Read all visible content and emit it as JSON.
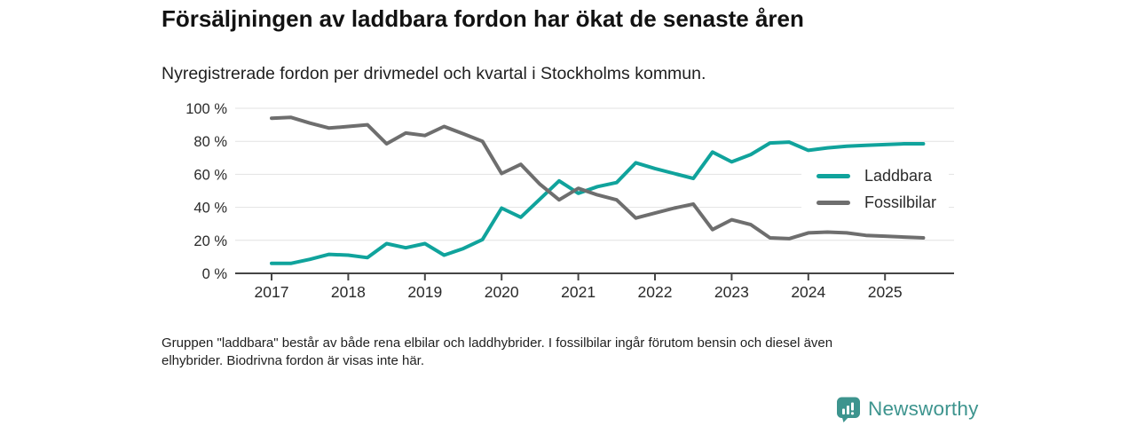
{
  "header": {
    "title": "Försäljningen av laddbara fordon har ökat de senaste åren",
    "subtitle": "Nyregistrerade fordon per drivmedel och kvartal i Stockholms kommun."
  },
  "legend": {
    "items": [
      {
        "label": "Laddbara",
        "color": "#10a39c"
      },
      {
        "label": "Fossilbilar",
        "color": "#6e6e6e"
      }
    ]
  },
  "footer": {
    "note_line1": "Gruppen \"laddbara\" består av både rena elbilar och laddhybrider. I fossilbilar ingår förutom bensin och diesel även",
    "note_line2": "elhybrider. Biodrivna fordon är visas inte här.",
    "logo_text": "Newsworthy"
  },
  "chart_data": {
    "type": "line",
    "title": "Försäljningen av laddbara fordon har ökat de senaste åren",
    "subtitle": "Nyregistrerade fordon per drivmedel och kvartal i Stockholms kommun.",
    "unit": "%",
    "x_quarters": [
      "2017 Q1",
      "2017 Q2",
      "2017 Q3",
      "2017 Q4",
      "2018 Q1",
      "2018 Q2",
      "2018 Q3",
      "2018 Q4",
      "2019 Q1",
      "2019 Q2",
      "2019 Q3",
      "2019 Q4",
      "2020 Q1",
      "2020 Q2",
      "2020 Q3",
      "2020 Q4",
      "2021 Q1",
      "2021 Q2",
      "2021 Q3",
      "2021 Q4",
      "2022 Q1",
      "2022 Q2",
      "2022 Q3",
      "2022 Q4",
      "2023 Q1",
      "2023 Q2",
      "2023 Q3",
      "2023 Q4",
      "2024 Q1",
      "2024 Q2",
      "2024 Q3",
      "2024 Q4",
      "2025 Q1",
      "2025 Q2",
      "2025 Q3"
    ],
    "series": [
      {
        "name": "Laddbara",
        "color": "#10a39c",
        "values": [
          6,
          6,
          8.5,
          11.5,
          11,
          9.5,
          18,
          15.5,
          18,
          11,
          15,
          20.5,
          39.5,
          34,
          45,
          56,
          48.5,
          52.5,
          55,
          67,
          63.5,
          60.5,
          57.5,
          73.5,
          67.5,
          72,
          79,
          79.5,
          74.5,
          76,
          77,
          77.5,
          78,
          78.5,
          78.5
        ]
      },
      {
        "name": "Fossilbilar",
        "color": "#6e6e6e",
        "values": [
          94,
          94.5,
          91,
          88,
          89,
          90,
          78.5,
          85,
          83.5,
          89,
          84.5,
          80,
          60.5,
          66,
          54,
          44.5,
          51.5,
          47.5,
          44.5,
          33.5,
          36.5,
          39.5,
          42,
          26.5,
          32.5,
          29.5,
          21.5,
          21,
          24.5,
          25,
          24.5,
          23,
          22.5,
          22,
          21.5
        ]
      }
    ],
    "x_axis": {
      "tick_labels": [
        "2017",
        "2018",
        "2019",
        "2020",
        "2021",
        "2022",
        "2023",
        "2024",
        "2025"
      ]
    },
    "y_axis": {
      "range": [
        0,
        100
      ],
      "ticks": [
        {
          "value": 0,
          "label": "0 %"
        },
        {
          "value": 20,
          "label": "20 %"
        },
        {
          "value": 40,
          "label": "40 %"
        },
        {
          "value": 60,
          "label": "60 %"
        },
        {
          "value": 80,
          "label": "80 %"
        },
        {
          "value": 100,
          "label": "100 %"
        }
      ]
    },
    "grid": "horizontal",
    "legend_position": "inside-right",
    "style": {
      "grid_color": "#e2e2e2",
      "axis_color": "#454545",
      "line_width": 4
    }
  }
}
